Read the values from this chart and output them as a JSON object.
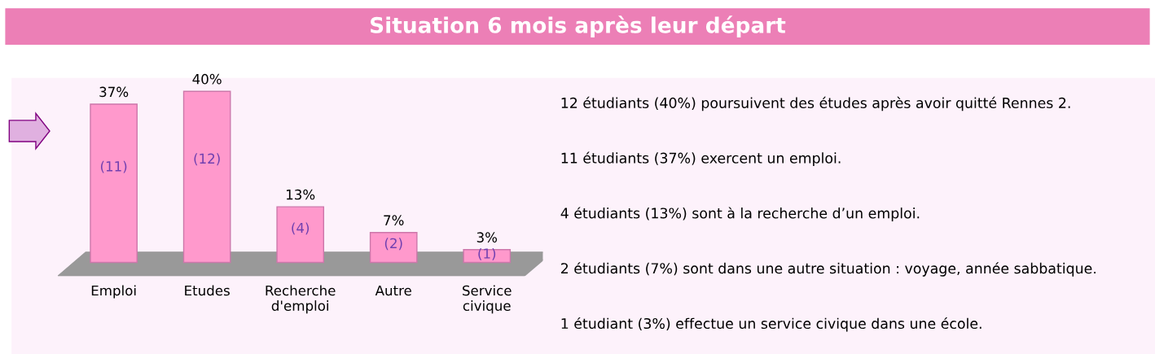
{
  "chart_data": [
    {
      "type": "bar",
      "title": "Situation 6 mois après leur départ",
      "categories": [
        "Emploi",
        "Etudes",
        "Recherche\nd'emploi",
        "Autre",
        "Service\ncivique"
      ],
      "values": [
        37,
        40,
        13,
        7,
        3
      ],
      "color": "#ff99cc",
      "value_labels": [
        "37%",
        "40%",
        "13%",
        "7%",
        "3%"
      ],
      "annotations": [
        "(11)",
        "(12)",
        "(4)",
        "(2)",
        "(1)"
      ],
      "grid": false,
      "legend": false
    },
    {
      "type": "other",
      "annotations": [
        "12 étudiants (40%) poursuivent des études après avoir quitté Rennes 2.",
        "11 étudiants (37%) exercent un emploi.",
        "4 étudiants (13%) sont à la recherche d’un emploi.",
        "2 étudiants (7%) sont dans une autre situation : voyage, année sabbatique.",
        "1 étudiant (3%) effectue un service civique dans une école."
      ]
    }
  ]
}
